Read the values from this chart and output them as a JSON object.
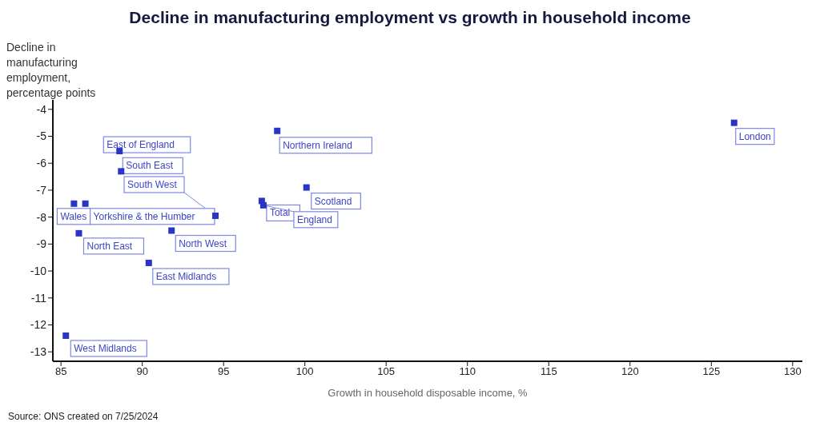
{
  "chart_data": {
    "type": "scatter",
    "title": "Decline in manufacturing employment vs growth in household income",
    "xlabel": "Growth in household disposable income, %",
    "ylabel": "Decline in manufacturing employment, percentage points",
    "x": [
      126.4,
      98.3,
      88.6,
      88.7,
      94.5,
      85.8,
      86.5,
      86.1,
      91.8,
      90.4,
      85.3,
      100.1,
      97.35,
      97.45
    ],
    "series": [
      {
        "color": "#2b35c5",
        "values": [
          -4.5,
          -4.8,
          -5.55,
          -6.3,
          -7.95,
          -7.5,
          -7.5,
          -8.6,
          -8.5,
          -9.7,
          -12.4,
          -6.9,
          -7.4,
          -7.56
        ]
      }
    ],
    "xlim": [
      84.5,
      130.6
    ],
    "xticks": [
      85,
      90,
      95,
      100,
      105,
      110,
      115,
      120,
      125,
      130
    ],
    "ylim": [
      -13.35,
      -3.65
    ],
    "yticks": [
      -13,
      -12,
      -11,
      -10,
      -9,
      -8,
      -7,
      -6,
      -5,
      -4
    ],
    "grid": false,
    "legend": false,
    "marker": "square",
    "annotations": [
      {
        "text": "London",
        "x": 126.4,
        "y": -4.5
      },
      {
        "text": "Northern Ireland",
        "x": 98.3,
        "y": -4.8
      },
      {
        "text": "East of England",
        "x": 88.6,
        "y": -5.55
      },
      {
        "text": "South East",
        "x": 88.7,
        "y": -6.3
      },
      {
        "text": "South West",
        "x": 94.5,
        "y": -7.95
      },
      {
        "text": "Wales",
        "x": 85.8,
        "y": -7.5
      },
      {
        "text": "Yorkshire & the Humber",
        "x": 86.5,
        "y": -7.5
      },
      {
        "text": "North East",
        "x": 86.1,
        "y": -8.6
      },
      {
        "text": "North West",
        "x": 91.8,
        "y": -8.5
      },
      {
        "text": "East Midlands",
        "x": 90.4,
        "y": -9.7
      },
      {
        "text": "West Midlands",
        "x": 85.3,
        "y": -12.4
      },
      {
        "text": "Scotland",
        "x": 100.1,
        "y": -6.9
      },
      {
        "text": "Total",
        "x": 97.35,
        "y": -7.4
      },
      {
        "text": "England",
        "x": 97.45,
        "y": -7.56
      },
      "Source: ONS created on 7/25/2024"
    ]
  }
}
